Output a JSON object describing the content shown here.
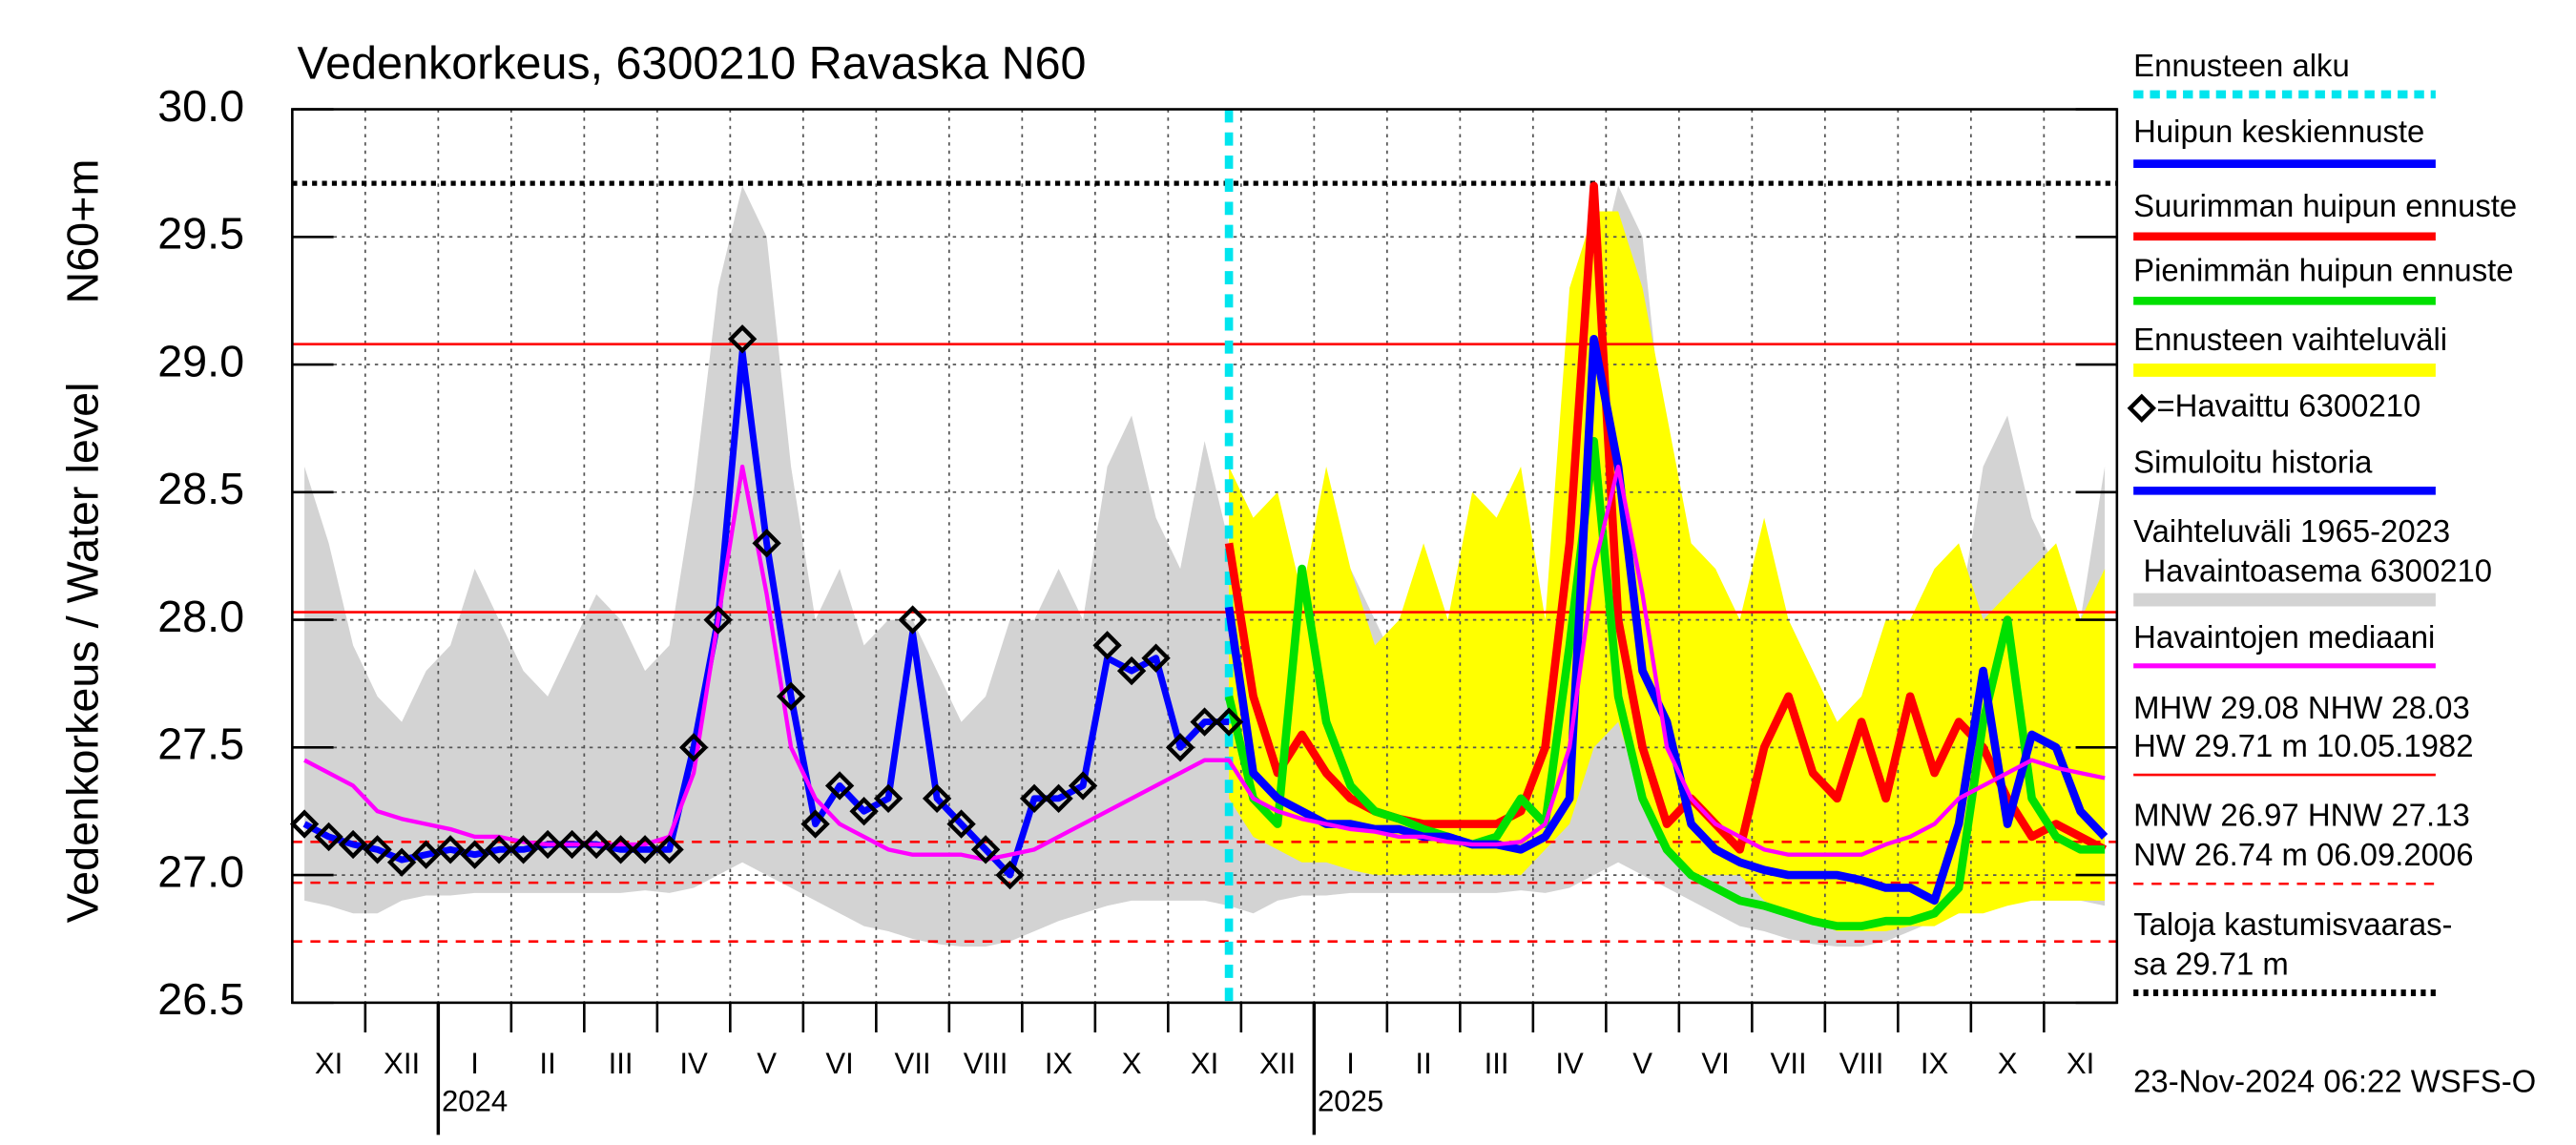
{
  "chart_data": {
    "type": "line",
    "title": "Vedenkorkeus, 6300210 Ravaska N60",
    "ylabel": "Vedenkorkeus / Water level",
    "ylabel_unit": "N60+m",
    "footer": "23-Nov-2024 06:22 WSFS-O",
    "ylim": [
      26.5,
      30.0
    ],
    "yticks": [
      26.5,
      {
        "value": 27.0,
        "label": "27.0"
      },
      27.5,
      {
        "value": 28.0,
        "label": "28.0"
      },
      28.5,
      {
        "value": 29.0,
        "label": "29.0"
      },
      29.5,
      {
        "value": 30.0,
        "label": "30.0"
      }
    ],
    "grid": true,
    "categories": [
      null,
      "XI",
      null,
      null,
      "XII",
      null,
      null,
      "I",
      null,
      null,
      "II",
      null,
      null,
      "III",
      null,
      null,
      "IV",
      null,
      null,
      "V",
      null,
      null,
      "VI",
      null,
      null,
      "VII",
      null,
      null,
      "VIII",
      null,
      null,
      "IX",
      null,
      null,
      "X",
      null,
      null,
      "XI",
      null,
      null,
      "XII",
      null,
      null,
      "I",
      null,
      null,
      "II",
      null,
      null,
      "III",
      null,
      null,
      "IV",
      null,
      null,
      "V",
      null,
      null,
      "VI",
      null,
      null,
      "VII",
      null,
      null,
      "VIII",
      null,
      null,
      "IX",
      null,
      null,
      "X",
      null,
      null,
      "XI",
      null
    ],
    "years": [
      null,
      null,
      null,
      null,
      null,
      null,
      null,
      "2024",
      null,
      null,
      null,
      null,
      null,
      null,
      null,
      null,
      null,
      null,
      null,
      null,
      null,
      null,
      null,
      null,
      null,
      null,
      null,
      null,
      null,
      null,
      null,
      null,
      null,
      null,
      null,
      null,
      null,
      null,
      null,
      null,
      null,
      null,
      null,
      "2025",
      null,
      null,
      null,
      null,
      null,
      null,
      null,
      null,
      null,
      null,
      null,
      null,
      null,
      null,
      null,
      null,
      null,
      null,
      null,
      null,
      null,
      null,
      null,
      null,
      null,
      null,
      null,
      null,
      null,
      null,
      null
    ],
    "forecast_start": {
      "name": "Ennusteen alku",
      "color": "#00e5ee"
    },
    "series": [
      {
        "name": [
          "Vaihteluväli 1965-2023",
          "Havaintoasema 6300210"
        ],
        "kind": "band",
        "color": "#d3d3d3",
        "high": [
          28.6,
          28.3,
          27.9,
          27.7,
          27.6,
          27.8,
          27.9,
          28.2,
          28.0,
          27.8,
          27.7,
          27.9,
          28.1,
          28.0,
          27.8,
          27.9,
          28.5,
          29.3,
          29.7,
          29.5,
          28.6,
          28.0,
          28.2,
          27.9,
          28.0,
          28.0,
          27.8,
          27.6,
          27.7,
          28.0,
          28.0,
          28.2,
          28.0,
          28.6,
          28.8,
          28.4,
          28.2,
          28.7,
          28.3,
          27.7,
          27.6,
          27.8,
          27.9,
          28.2,
          28.0,
          27.8,
          27.7,
          27.9,
          28.1,
          28.0,
          27.8,
          27.9,
          28.5,
          29.3,
          29.7,
          29.5,
          28.6,
          28.0,
          28.2,
          27.9,
          28.0,
          28.0,
          27.8,
          27.6,
          27.7,
          28.0,
          28.0,
          28.2,
          28.0,
          28.6,
          28.8,
          28.4,
          28.2,
          28.0,
          28.6
        ],
        "low": [
          26.9,
          26.88,
          26.85,
          26.85,
          26.9,
          26.92,
          26.92,
          26.93,
          26.93,
          26.93,
          26.93,
          26.93,
          26.93,
          26.93,
          26.94,
          26.93,
          26.95,
          27.0,
          27.05,
          27.0,
          26.95,
          26.9,
          26.85,
          26.8,
          26.78,
          26.75,
          26.73,
          26.72,
          26.72,
          26.74,
          26.78,
          26.82,
          26.85,
          26.88,
          26.9,
          26.9,
          26.9,
          26.9,
          26.88,
          26.85,
          26.9,
          26.92,
          26.92,
          26.93,
          26.93,
          26.93,
          26.93,
          26.93,
          26.93,
          26.93,
          26.94,
          26.93,
          26.95,
          27.0,
          27.05,
          27.0,
          26.95,
          26.9,
          26.85,
          26.8,
          26.78,
          26.75,
          26.73,
          26.72,
          26.72,
          26.74,
          26.78,
          26.82,
          26.85,
          26.88,
          26.9,
          26.9,
          26.9,
          26.9,
          26.88
        ]
      },
      {
        "name": "Ennusteen vaihteluväli",
        "kind": "band",
        "color": "#ffff00",
        "high": [
          null,
          null,
          null,
          null,
          null,
          null,
          null,
          null,
          null,
          null,
          null,
          null,
          null,
          null,
          null,
          null,
          null,
          null,
          null,
          null,
          null,
          null,
          null,
          null,
          null,
          null,
          null,
          null,
          null,
          null,
          null,
          null,
          null,
          null,
          null,
          null,
          null,
          null,
          28.6,
          28.4,
          28.5,
          28.1,
          28.6,
          28.2,
          27.9,
          28.0,
          28.3,
          28.0,
          28.5,
          28.4,
          28.6,
          28.0,
          29.3,
          29.6,
          29.6,
          29.3,
          28.8,
          28.3,
          28.2,
          28.0,
          28.4,
          28.0,
          27.8,
          27.6,
          27.7,
          28.0,
          28.0,
          28.2,
          28.3,
          28.0,
          28.1,
          28.2,
          28.3,
          28.0,
          28.2
        ],
        "low": [
          null,
          null,
          null,
          null,
          null,
          null,
          null,
          null,
          null,
          null,
          null,
          null,
          null,
          null,
          null,
          null,
          null,
          null,
          null,
          null,
          null,
          null,
          null,
          null,
          null,
          null,
          null,
          null,
          null,
          null,
          null,
          null,
          null,
          null,
          null,
          null,
          null,
          null,
          27.3,
          27.15,
          27.1,
          27.05,
          27.05,
          27.02,
          27.0,
          27.0,
          27.0,
          27.0,
          27.0,
          27.0,
          27.0,
          27.1,
          27.2,
          27.5,
          27.6,
          27.3,
          27.1,
          27.0,
          27.0,
          27.0,
          26.9,
          26.85,
          26.82,
          26.78,
          26.78,
          26.78,
          26.8,
          26.8,
          26.85,
          26.85,
          26.88,
          26.9,
          26.9,
          26.9,
          26.9
        ]
      },
      {
        "name": "Simuloitu historia",
        "kind": "line",
        "color": "#0000ff",
        "width": 4,
        "values": [
          27.2,
          27.15,
          27.12,
          27.1,
          27.06,
          27.08,
          27.1,
          27.08,
          27.1,
          27.1,
          27.12,
          27.12,
          27.12,
          27.1,
          27.1,
          27.1,
          27.5,
          28.0,
          29.05,
          28.3,
          27.7,
          27.2,
          27.35,
          27.25,
          27.3,
          27.95,
          27.3,
          27.2,
          27.1,
          27.0,
          27.3,
          27.3,
          27.35,
          27.85,
          27.8,
          27.85,
          27.5,
          27.6,
          27.6,
          null,
          null,
          null,
          null,
          null,
          null,
          null,
          null,
          null,
          null,
          null,
          null,
          null,
          null,
          null,
          null,
          null,
          null,
          null,
          null,
          null,
          null,
          null,
          null,
          null,
          null,
          null,
          null,
          null,
          null,
          null,
          null,
          null,
          null,
          null,
          null
        ]
      },
      {
        "name": "Suurimman huipun ennuste",
        "kind": "line",
        "color": "#ff0000",
        "width": 5,
        "values": [
          null,
          null,
          null,
          null,
          null,
          null,
          null,
          null,
          null,
          null,
          null,
          null,
          null,
          null,
          null,
          null,
          null,
          null,
          null,
          null,
          null,
          null,
          null,
          null,
          null,
          null,
          null,
          null,
          null,
          null,
          null,
          null,
          null,
          null,
          null,
          null,
          null,
          null,
          28.3,
          27.7,
          27.4,
          27.55,
          27.4,
          27.3,
          27.25,
          27.22,
          27.2,
          27.2,
          27.2,
          27.2,
          27.25,
          27.5,
          28.3,
          29.7,
          28.0,
          27.5,
          27.2,
          27.3,
          27.2,
          27.1,
          27.5,
          27.7,
          27.4,
          27.3,
          27.6,
          27.3,
          27.7,
          27.4,
          27.6,
          27.5,
          27.3,
          27.15,
          27.2,
          27.15,
          27.1
        ]
      },
      {
        "name": "Pienimmän huipun ennuste",
        "kind": "line",
        "color": "#00e000",
        "width": 5,
        "values": [
          null,
          null,
          null,
          null,
          null,
          null,
          null,
          null,
          null,
          null,
          null,
          null,
          null,
          null,
          null,
          null,
          null,
          null,
          null,
          null,
          null,
          null,
          null,
          null,
          null,
          null,
          null,
          null,
          null,
          null,
          null,
          null,
          null,
          null,
          null,
          null,
          null,
          null,
          27.7,
          27.3,
          27.2,
          28.2,
          27.6,
          27.35,
          27.25,
          27.22,
          27.18,
          27.15,
          27.12,
          27.15,
          27.3,
          27.2,
          27.9,
          28.7,
          27.7,
          27.3,
          27.1,
          27.0,
          26.95,
          26.9,
          26.88,
          26.85,
          26.82,
          26.8,
          26.8,
          26.82,
          26.82,
          26.85,
          26.95,
          27.6,
          28.0,
          27.3,
          27.15,
          27.1,
          27.1
        ]
      },
      {
        "name": "Huipun keskiennuste",
        "kind": "line",
        "color": "#0000ff",
        "width": 5,
        "values": [
          null,
          null,
          null,
          null,
          null,
          null,
          null,
          null,
          null,
          null,
          null,
          null,
          null,
          null,
          null,
          null,
          null,
          null,
          null,
          null,
          null,
          null,
          null,
          null,
          null,
          null,
          null,
          null,
          null,
          null,
          null,
          null,
          null,
          null,
          null,
          null,
          null,
          null,
          28.05,
          27.4,
          27.3,
          27.25,
          27.2,
          27.2,
          27.18,
          27.18,
          27.15,
          27.15,
          27.12,
          27.12,
          27.1,
          27.15,
          27.3,
          29.1,
          28.6,
          27.8,
          27.6,
          27.2,
          27.1,
          27.05,
          27.02,
          27.0,
          27.0,
          27.0,
          26.98,
          26.95,
          26.95,
          26.9,
          27.2,
          27.8,
          27.2,
          27.55,
          27.5,
          27.25,
          27.15
        ]
      },
      {
        "name": "Havaintojen mediaani",
        "kind": "line",
        "color": "#ff00ff",
        "width": 2.5,
        "values": [
          27.45,
          27.4,
          27.35,
          27.25,
          27.22,
          27.2,
          27.18,
          27.15,
          27.15,
          27.13,
          27.12,
          27.12,
          27.12,
          27.12,
          27.12,
          27.15,
          27.4,
          28.0,
          28.6,
          28.1,
          27.5,
          27.3,
          27.2,
          27.15,
          27.1,
          27.08,
          27.08,
          27.08,
          27.06,
          27.08,
          27.1,
          27.15,
          27.2,
          27.25,
          27.3,
          27.35,
          27.4,
          27.45,
          27.45,
          27.3,
          27.25,
          27.22,
          27.2,
          27.18,
          27.17,
          27.15,
          27.15,
          27.13,
          27.12,
          27.12,
          27.13,
          27.2,
          27.5,
          28.2,
          28.6,
          28.1,
          27.5,
          27.3,
          27.2,
          27.15,
          27.1,
          27.08,
          27.08,
          27.08,
          27.08,
          27.12,
          27.15,
          27.2,
          27.3,
          27.35,
          27.4,
          27.45,
          27.42,
          27.4,
          27.38
        ]
      },
      {
        "name": "=Havaittu 6300210",
        "kind": "markers",
        "color": "#000000",
        "values": [
          27.2,
          27.15,
          27.12,
          27.1,
          27.05,
          27.08,
          27.1,
          27.08,
          27.1,
          27.1,
          27.12,
          27.12,
          27.12,
          27.1,
          27.1,
          27.1,
          27.5,
          28.0,
          29.1,
          28.3,
          27.7,
          27.2,
          27.35,
          27.25,
          27.3,
          28.0,
          27.3,
          27.2,
          27.1,
          27.0,
          27.3,
          27.3,
          27.35,
          27.9,
          27.8,
          27.85,
          27.5,
          27.6,
          27.6,
          null,
          null,
          null,
          null,
          null,
          null,
          null,
          null,
          null,
          null,
          null,
          null,
          null,
          null,
          null,
          null,
          null,
          null,
          null,
          null,
          null,
          null,
          null,
          null,
          null,
          null,
          null,
          null,
          null,
          null,
          null,
          null,
          null,
          null,
          null,
          null
        ]
      }
    ],
    "reference_lines": [
      {
        "label": [
          "MHW  29.08 NHW  28.03",
          "HW  29.71 m 10.05.1982"
        ],
        "color": "#ff0000",
        "dash": "solid",
        "values": [
          29.08,
          28.03
        ]
      },
      {
        "label": [
          "MNW  26.97 HNW  27.13",
          "NW  26.74 m 06.09.2006"
        ],
        "color": "#ff0000",
        "dash": "dashed",
        "values": [
          26.97,
          27.13,
          26.74
        ]
      },
      {
        "label": [
          "Taloja kastumisvaaras-",
          "sa 29.71 m"
        ],
        "color": "#000000",
        "dash": "dotted",
        "values": [
          29.71
        ]
      }
    ]
  }
}
